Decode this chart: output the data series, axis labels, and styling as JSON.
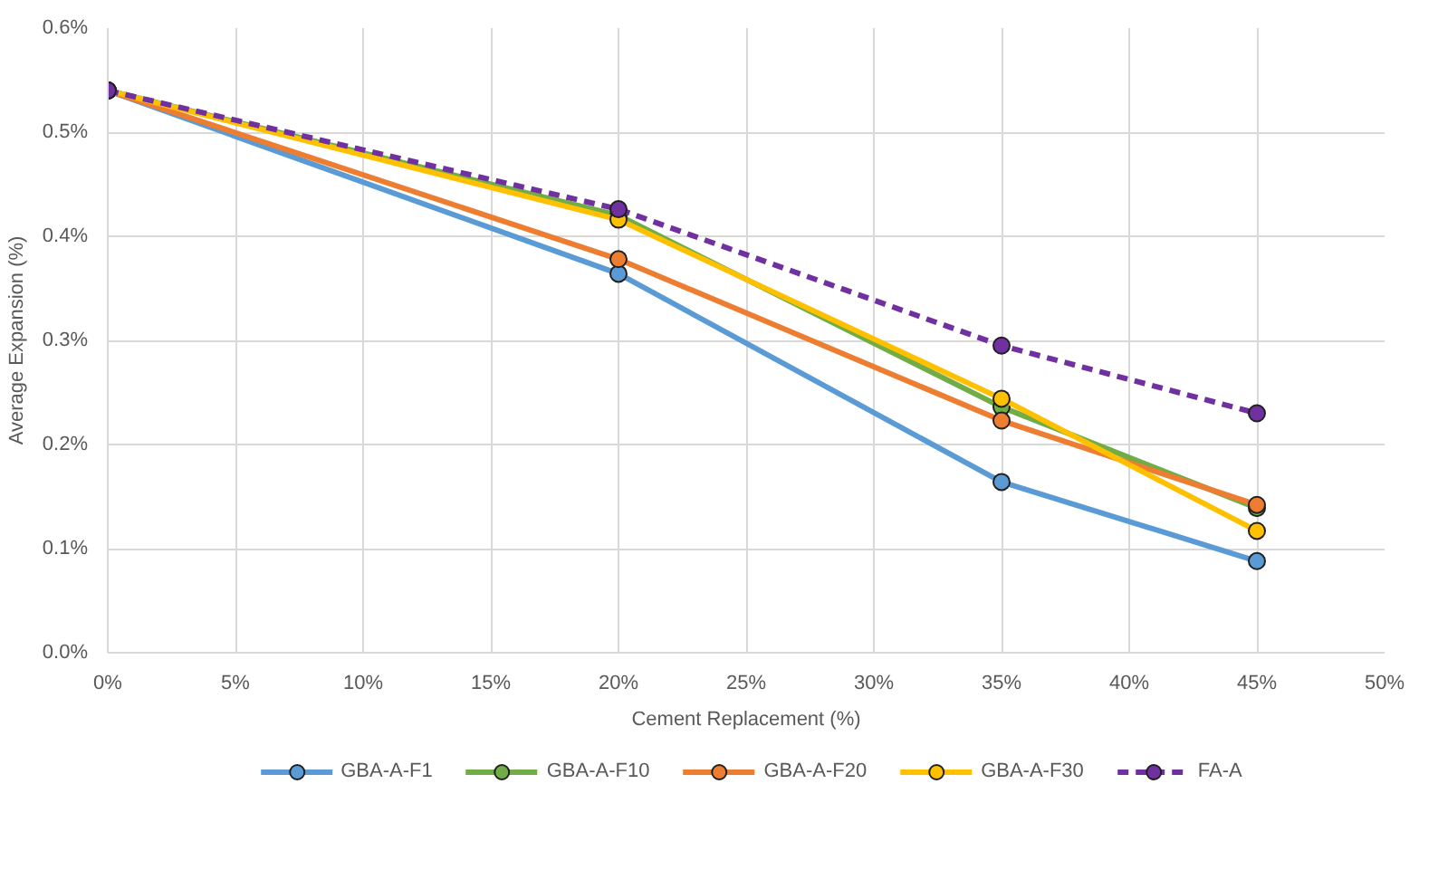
{
  "chart_data": {
    "type": "line",
    "xlabel": "Cement Replacement (%)",
    "ylabel": "Average Expansion (%)",
    "x": [
      0,
      20,
      35,
      45
    ],
    "series": [
      {
        "name": "GBA-A-F1",
        "color": "#5b9bd5",
        "values": [
          0.54,
          0.364,
          0.164,
          0.088
        ]
      },
      {
        "name": "GBA-A-F10",
        "color": "#70ad47",
        "values": [
          0.54,
          0.42,
          0.236,
          0.139
        ]
      },
      {
        "name": "GBA-A-F20",
        "color": "#ed7d31",
        "values": [
          0.54,
          0.378,
          0.223,
          0.142
        ]
      },
      {
        "name": "GBA-A-F30",
        "color": "#ffc000",
        "values": [
          0.54,
          0.416,
          0.244,
          0.117
        ]
      },
      {
        "name": "FA-A",
        "color": "#7030a0",
        "values": [
          0.54,
          0.426,
          0.295,
          0.23
        ],
        "line_style": "dashed"
      }
    ],
    "xlim": [
      0,
      50
    ],
    "xticks": [
      {
        "value": 0,
        "label": "0%"
      },
      {
        "value": 5,
        "label": "5%"
      },
      {
        "value": 10,
        "label": "10%"
      },
      {
        "value": 15,
        "label": "15%"
      },
      {
        "value": 20,
        "label": "20%"
      },
      {
        "value": 25,
        "label": "25%"
      },
      {
        "value": 30,
        "label": "30%"
      },
      {
        "value": 35,
        "label": "35%"
      },
      {
        "value": 40,
        "label": "40%"
      },
      {
        "value": 45,
        "label": "45%"
      },
      {
        "value": 50,
        "label": "50%"
      }
    ],
    "ylim": [
      0,
      0.6
    ],
    "yticks": [
      {
        "value": 0,
        "label": "0.0%"
      },
      {
        "value": 0.1,
        "label": "0.1%"
      },
      {
        "value": 0.2,
        "label": "0.2%"
      },
      {
        "value": 0.3,
        "label": "0.3%"
      },
      {
        "value": 0.4,
        "label": "0.4%"
      },
      {
        "value": 0.5,
        "label": "0.5%"
      },
      {
        "value": 0.6,
        "label": "0.6%"
      }
    ],
    "grid": true,
    "legend": "bottom",
    "marker": "circle",
    "line_style": "solid"
  }
}
